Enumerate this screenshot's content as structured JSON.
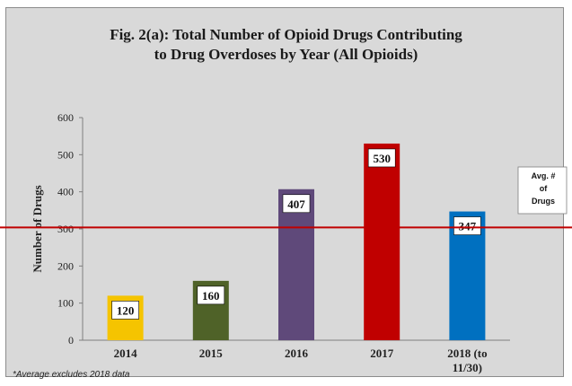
{
  "chart_data": {
    "type": "bar",
    "title_line1": "Fig. 2(a): Total Number of Opioid Drugs Contributing",
    "title_line2": "to Drug Overdoses by Year (All Opioids)",
    "xlabel": "",
    "ylabel": "Number of Drugs",
    "categories": [
      "2014",
      "2015",
      "2016",
      "2017",
      "2018 (to 11/30)"
    ],
    "category_lines": [
      [
        "2014"
      ],
      [
        "2015"
      ],
      [
        "2016"
      ],
      [
        "2017"
      ],
      [
        "2018 (to",
        "11/30)"
      ]
    ],
    "values": [
      120,
      160,
      407,
      530,
      347
    ],
    "data_labels": [
      "120",
      "160",
      "407",
      "530",
      "347"
    ],
    "colors": [
      "#f5c400",
      "#4f6228",
      "#5f497a",
      "#c00000",
      "#0070c0"
    ],
    "ylim": [
      0,
      600
    ],
    "yticks": [
      0,
      100,
      200,
      300,
      400,
      500,
      600
    ],
    "grid": false,
    "reference_line": {
      "value": 304,
      "color": "#c00000",
      "label_lines": [
        "Avg. #",
        "of",
        "Drugs"
      ]
    },
    "footnote": "*Average excludes 2018 data"
  }
}
